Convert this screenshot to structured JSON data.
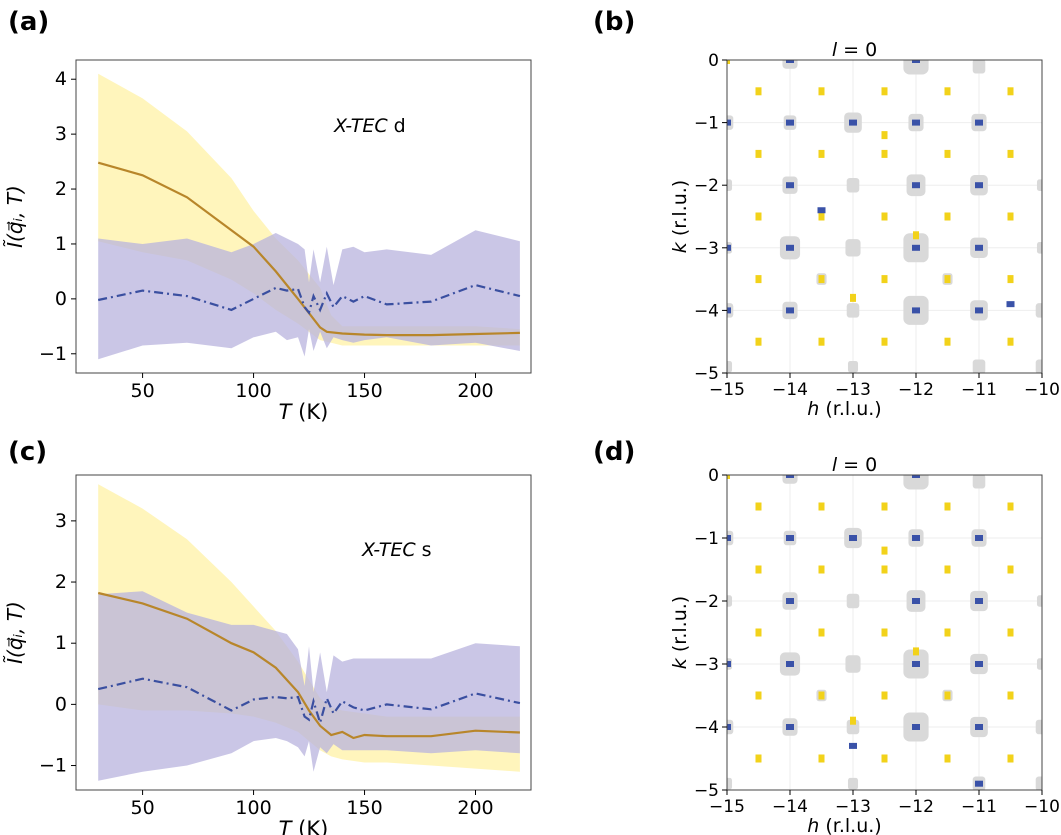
{
  "colors": {
    "band_a": "#fff3b0",
    "band_b": "#b8b3dd",
    "line_a": "#b8862a",
    "line_b": "#3a4fa0",
    "map_gray": "#d9d9d9",
    "map_blue": "#3a52a8",
    "map_yellow": "#f2d21a"
  },
  "chart_data": [
    {
      "id": "a",
      "panel_label": "(a)",
      "type": "line",
      "annotation_italic": "X-TEC",
      "annotation_plain": " d",
      "xlabel_italic": "T",
      "xlabel_unit": " (K)",
      "ylabel": "Ĩ(q⃗ᵢ, T)",
      "xlim": [
        20,
        225
      ],
      "ylim": [
        -1.35,
        4.35
      ],
      "xticks": [
        50,
        100,
        150,
        200
      ],
      "yticks": [
        -1,
        0,
        1,
        2,
        3,
        4
      ],
      "band_a": {
        "x": [
          30,
          50,
          70,
          90,
          100,
          110,
          120,
          130,
          135,
          140,
          150,
          160,
          180,
          200,
          220
        ],
        "upper": [
          4.1,
          3.65,
          3.05,
          2.2,
          1.6,
          1.1,
          0.7,
          0.2,
          -0.3,
          -0.5,
          -0.5,
          -0.5,
          -0.5,
          -0.5,
          -0.55
        ],
        "lower": [
          1.05,
          0.85,
          0.7,
          0.35,
          0.1,
          -0.2,
          -0.45,
          -0.75,
          -0.8,
          -0.85,
          -0.85,
          -0.85,
          -0.85,
          -0.85,
          -0.85
        ]
      },
      "band_b": {
        "x": [
          30,
          50,
          70,
          90,
          100,
          110,
          115,
          120,
          123,
          125,
          127,
          130,
          133,
          136,
          140,
          145,
          150,
          160,
          180,
          200,
          220
        ],
        "upper": [
          1.1,
          1.0,
          1.1,
          0.85,
          1.0,
          1.2,
          1.1,
          1.0,
          0.9,
          0.3,
          0.9,
          0.3,
          0.95,
          0.25,
          0.9,
          0.95,
          0.85,
          0.9,
          0.8,
          1.25,
          1.05
        ],
        "lower": [
          -1.1,
          -0.85,
          -0.8,
          -0.9,
          -0.7,
          -0.6,
          -0.75,
          -0.7,
          -1.05,
          -0.55,
          -0.95,
          -0.6,
          -0.9,
          -0.7,
          -0.75,
          -0.8,
          -0.75,
          -0.7,
          -0.85,
          -0.8,
          -0.95
        ]
      },
      "line_a": {
        "x": [
          30,
          50,
          70,
          90,
          100,
          110,
          120,
          130,
          133,
          140,
          150,
          160,
          180,
          200,
          220
        ],
        "y": [
          2.48,
          2.25,
          1.85,
          1.25,
          0.95,
          0.5,
          0.0,
          -0.52,
          -0.6,
          -0.63,
          -0.65,
          -0.66,
          -0.66,
          -0.64,
          -0.62
        ]
      },
      "line_b": {
        "x": [
          30,
          50,
          70,
          90,
          100,
          110,
          115,
          120,
          123,
          125,
          127,
          130,
          133,
          136,
          140,
          145,
          150,
          160,
          180,
          200,
          220
        ],
        "y": [
          -0.02,
          0.15,
          0.05,
          -0.2,
          0.0,
          0.2,
          0.15,
          0.18,
          -0.15,
          -0.25,
          0.05,
          -0.2,
          0.1,
          -0.15,
          0.05,
          -0.05,
          0.05,
          -0.1,
          -0.05,
          0.25,
          0.05
        ]
      }
    },
    {
      "id": "c",
      "panel_label": "(c)",
      "type": "line",
      "annotation_italic": "X-TEC",
      "annotation_plain": " s",
      "xlabel_italic": "T",
      "xlabel_unit": " (K)",
      "ylabel": "Ĩ(q⃗ᵢ, T)",
      "xlim": [
        20,
        225
      ],
      "ylim": [
        -1.4,
        3.75
      ],
      "xticks": [
        50,
        100,
        150,
        200
      ],
      "yticks": [
        -1,
        0,
        1,
        2,
        3
      ],
      "band_a": {
        "x": [
          30,
          50,
          70,
          90,
          100,
          110,
          120,
          130,
          135,
          140,
          150,
          160,
          180,
          200,
          220
        ],
        "upper": [
          3.6,
          3.2,
          2.7,
          2.0,
          1.6,
          1.2,
          0.7,
          0.1,
          -0.05,
          -0.1,
          -0.15,
          -0.2,
          -0.2,
          -0.2,
          -0.2
        ],
        "lower": [
          0.0,
          -0.1,
          -0.1,
          -0.15,
          -0.2,
          -0.3,
          -0.45,
          -0.75,
          -0.85,
          -0.9,
          -0.95,
          -0.95,
          -1.0,
          -1.05,
          -1.1
        ]
      },
      "band_b": {
        "x": [
          30,
          50,
          70,
          90,
          100,
          110,
          115,
          120,
          123,
          125,
          127,
          130,
          133,
          136,
          140,
          145,
          150,
          160,
          180,
          200,
          220
        ],
        "upper": [
          1.8,
          1.85,
          1.5,
          1.3,
          1.3,
          1.2,
          1.15,
          0.9,
          0.3,
          0.95,
          0.2,
          0.85,
          0.2,
          0.8,
          0.7,
          0.75,
          0.75,
          0.75,
          0.75,
          1.0,
          0.95
        ],
        "lower": [
          -1.25,
          -1.1,
          -1.0,
          -0.8,
          -0.6,
          -0.55,
          -0.6,
          -0.7,
          -0.85,
          -0.6,
          -1.1,
          -0.7,
          -0.8,
          -0.65,
          -0.75,
          -0.75,
          -0.75,
          -0.75,
          -0.8,
          -0.75,
          -0.8
        ]
      },
      "line_a": {
        "x": [
          30,
          50,
          70,
          90,
          100,
          110,
          120,
          125,
          130,
          135,
          140,
          145,
          150,
          160,
          180,
          200,
          220
        ],
        "y": [
          1.82,
          1.65,
          1.4,
          1.0,
          0.85,
          0.6,
          0.2,
          -0.1,
          -0.35,
          -0.5,
          -0.45,
          -0.55,
          -0.5,
          -0.52,
          -0.52,
          -0.43,
          -0.46
        ]
      },
      "line_b": {
        "x": [
          30,
          50,
          70,
          90,
          100,
          110,
          115,
          120,
          123,
          125,
          127,
          130,
          133,
          136,
          140,
          145,
          150,
          160,
          180,
          200,
          220
        ],
        "y": [
          0.25,
          0.42,
          0.28,
          -0.1,
          0.08,
          0.12,
          0.1,
          0.12,
          -0.2,
          -0.25,
          0.05,
          -0.3,
          0.1,
          -0.15,
          0.05,
          -0.05,
          -0.1,
          0.0,
          -0.08,
          0.18,
          0.02
        ]
      }
    },
    {
      "id": "b",
      "panel_label": "(b)",
      "type": "heatmap",
      "title_italic": "l",
      "title_rest": " = 0",
      "xlabel_italic": "h",
      "xlabel_unit": " (r.l.u.)",
      "ylabel_italic": "k",
      "ylabel_unit": " (r.l.u.)",
      "xlim": [
        -15,
        -10
      ],
      "ylim": [
        -5,
        0
      ],
      "xticks": [
        -15,
        -14,
        -13,
        -12,
        -11,
        -10
      ],
      "yticks": [
        0,
        -1,
        -2,
        -3,
        -4,
        -5
      ],
      "gray_blobs": [
        [
          -14,
          0,
          0.12
        ],
        [
          -12,
          0,
          0.2
        ],
        [
          -11,
          -0.1,
          0.1
        ],
        [
          -15,
          -1,
          0.1
        ],
        [
          -14,
          -1,
          0.1
        ],
        [
          -13,
          -1,
          0.14
        ],
        [
          -12,
          -1,
          0.12
        ],
        [
          -11,
          -1,
          0.12
        ],
        [
          -15,
          -2,
          0.08
        ],
        [
          -14,
          -2,
          0.12
        ],
        [
          -13,
          -2,
          0.1
        ],
        [
          -12,
          -2,
          0.15
        ],
        [
          -11,
          -2,
          0.14
        ],
        [
          -10,
          -2,
          0.08
        ],
        [
          -15,
          -3,
          0.08
        ],
        [
          -14,
          -3,
          0.16
        ],
        [
          -13,
          -3,
          0.12
        ],
        [
          -12,
          -3,
          0.2
        ],
        [
          -11,
          -3,
          0.14
        ],
        [
          -10,
          -3,
          0.08
        ],
        [
          -13.5,
          -3.5,
          0.08
        ],
        [
          -11.5,
          -3.5,
          0.08
        ],
        [
          -15,
          -4,
          0.1
        ],
        [
          -14,
          -4,
          0.12
        ],
        [
          -13,
          -4,
          0.1
        ],
        [
          -12,
          -4,
          0.2
        ],
        [
          -11,
          -4,
          0.14
        ],
        [
          -10,
          -4,
          0.1
        ],
        [
          -15,
          -4.9,
          0.08
        ],
        [
          -13,
          -4.9,
          0.08
        ],
        [
          -11,
          -4.9,
          0.1
        ],
        [
          -10,
          -4.9,
          0.1
        ]
      ],
      "blue_marks": [
        [
          -14,
          0
        ],
        [
          -12,
          0
        ],
        [
          -15,
          -1
        ],
        [
          -14,
          -1
        ],
        [
          -13,
          -1
        ],
        [
          -12,
          -1
        ],
        [
          -11,
          -1
        ],
        [
          -14,
          -2
        ],
        [
          -12,
          -2
        ],
        [
          -11,
          -2
        ],
        [
          -15,
          -3
        ],
        [
          -14,
          -3
        ],
        [
          -12,
          -3
        ],
        [
          -11,
          -3
        ],
        [
          -15,
          -4
        ],
        [
          -14,
          -4
        ],
        [
          -12,
          -4
        ],
        [
          -11,
          -4
        ],
        [
          -13.5,
          -2.4
        ],
        [
          -10.5,
          -3.9
        ]
      ],
      "yellow_marks": [
        [
          -15,
          0
        ],
        [
          -14.5,
          -0.5
        ],
        [
          -13.5,
          -0.5
        ],
        [
          -12.5,
          -0.5
        ],
        [
          -11.5,
          -0.5
        ],
        [
          -10.5,
          -0.5
        ],
        [
          -14.5,
          -1.5
        ],
        [
          -13.5,
          -1.5
        ],
        [
          -12.5,
          -1.5
        ],
        [
          -11.5,
          -1.5
        ],
        [
          -10.5,
          -1.5
        ],
        [
          -14.5,
          -2.5
        ],
        [
          -13.5,
          -2.5
        ],
        [
          -12.5,
          -2.5
        ],
        [
          -11.5,
          -2.5
        ],
        [
          -10.5,
          -2.5
        ],
        [
          -14.5,
          -3.5
        ],
        [
          -13.5,
          -3.5
        ],
        [
          -12.5,
          -3.5
        ],
        [
          -11.5,
          -3.5
        ],
        [
          -10.5,
          -3.5
        ],
        [
          -14.5,
          -4.5
        ],
        [
          -13.5,
          -4.5
        ],
        [
          -12.5,
          -4.5
        ],
        [
          -11.5,
          -4.5
        ],
        [
          -10.5,
          -4.5
        ],
        [
          -12.5,
          -1.2
        ],
        [
          -12,
          -2.8
        ],
        [
          -13,
          -3.8
        ]
      ]
    },
    {
      "id": "d",
      "panel_label": "(d)",
      "type": "heatmap",
      "title_italic": "l",
      "title_rest": " = 0",
      "xlabel_italic": "h",
      "xlabel_unit": " (r.l.u.)",
      "ylabel_italic": "k",
      "ylabel_unit": " (r.l.u.)",
      "xlim": [
        -15,
        -10
      ],
      "ylim": [
        -5,
        0
      ],
      "xticks": [
        -15,
        -14,
        -13,
        -12,
        -11,
        -10
      ],
      "yticks": [
        0,
        -1,
        -2,
        -3,
        -4,
        -5
      ],
      "gray_blobs": [
        [
          -14,
          0,
          0.12
        ],
        [
          -12,
          0,
          0.2
        ],
        [
          -11,
          -0.1,
          0.1
        ],
        [
          -15,
          -1,
          0.1
        ],
        [
          -14,
          -1,
          0.1
        ],
        [
          -13,
          -1,
          0.14
        ],
        [
          -12,
          -1,
          0.12
        ],
        [
          -11,
          -1,
          0.12
        ],
        [
          -15,
          -2,
          0.08
        ],
        [
          -14,
          -2,
          0.12
        ],
        [
          -13,
          -2,
          0.1
        ],
        [
          -12,
          -2,
          0.15
        ],
        [
          -11,
          -2,
          0.14
        ],
        [
          -10,
          -2,
          0.08
        ],
        [
          -15,
          -3,
          0.08
        ],
        [
          -14,
          -3,
          0.16
        ],
        [
          -13,
          -3,
          0.12
        ],
        [
          -12,
          -3,
          0.2
        ],
        [
          -11,
          -3,
          0.14
        ],
        [
          -10,
          -3,
          0.08
        ],
        [
          -13.5,
          -3.5,
          0.08
        ],
        [
          -11.5,
          -3.5,
          0.08
        ],
        [
          -15,
          -4,
          0.1
        ],
        [
          -14,
          -4,
          0.12
        ],
        [
          -13,
          -4,
          0.1
        ],
        [
          -12,
          -4,
          0.2
        ],
        [
          -11,
          -4,
          0.14
        ],
        [
          -10,
          -4,
          0.1
        ],
        [
          -15,
          -4.9,
          0.08
        ],
        [
          -13,
          -4.9,
          0.08
        ],
        [
          -11,
          -4.9,
          0.1
        ],
        [
          -10,
          -4.9,
          0.1
        ]
      ],
      "blue_marks": [
        [
          -14,
          0
        ],
        [
          -12,
          0
        ],
        [
          -15,
          -1
        ],
        [
          -14,
          -1
        ],
        [
          -13,
          -1
        ],
        [
          -12,
          -1
        ],
        [
          -11,
          -1
        ],
        [
          -14,
          -2
        ],
        [
          -12,
          -2
        ],
        [
          -11,
          -2
        ],
        [
          -15,
          -3
        ],
        [
          -14,
          -3
        ],
        [
          -12,
          -3
        ],
        [
          -11,
          -3
        ],
        [
          -15,
          -4
        ],
        [
          -14,
          -4
        ],
        [
          -12,
          -4
        ],
        [
          -11,
          -4
        ],
        [
          -13,
          -4.3
        ],
        [
          -11,
          -4.9
        ]
      ],
      "yellow_marks": [
        [
          -15,
          0
        ],
        [
          -14.5,
          -0.5
        ],
        [
          -13.5,
          -0.5
        ],
        [
          -12.5,
          -0.5
        ],
        [
          -11.5,
          -0.5
        ],
        [
          -10.5,
          -0.5
        ],
        [
          -14.5,
          -1.5
        ],
        [
          -13.5,
          -1.5
        ],
        [
          -12.5,
          -1.5
        ],
        [
          -11.5,
          -1.5
        ],
        [
          -10.5,
          -1.5
        ],
        [
          -14.5,
          -2.5
        ],
        [
          -13.5,
          -2.5
        ],
        [
          -12.5,
          -2.5
        ],
        [
          -11.5,
          -2.5
        ],
        [
          -10.5,
          -2.5
        ],
        [
          -14.5,
          -3.5
        ],
        [
          -13.5,
          -3.5
        ],
        [
          -12.5,
          -3.5
        ],
        [
          -11.5,
          -3.5
        ],
        [
          -10.5,
          -3.5
        ],
        [
          -14.5,
          -4.5
        ],
        [
          -13.5,
          -4.5
        ],
        [
          -12.5,
          -4.5
        ],
        [
          -11.5,
          -4.5
        ],
        [
          -10.5,
          -4.5
        ],
        [
          -12.5,
          -1.2
        ],
        [
          -12,
          -2.8
        ],
        [
          -13,
          -3.9
        ]
      ]
    }
  ]
}
